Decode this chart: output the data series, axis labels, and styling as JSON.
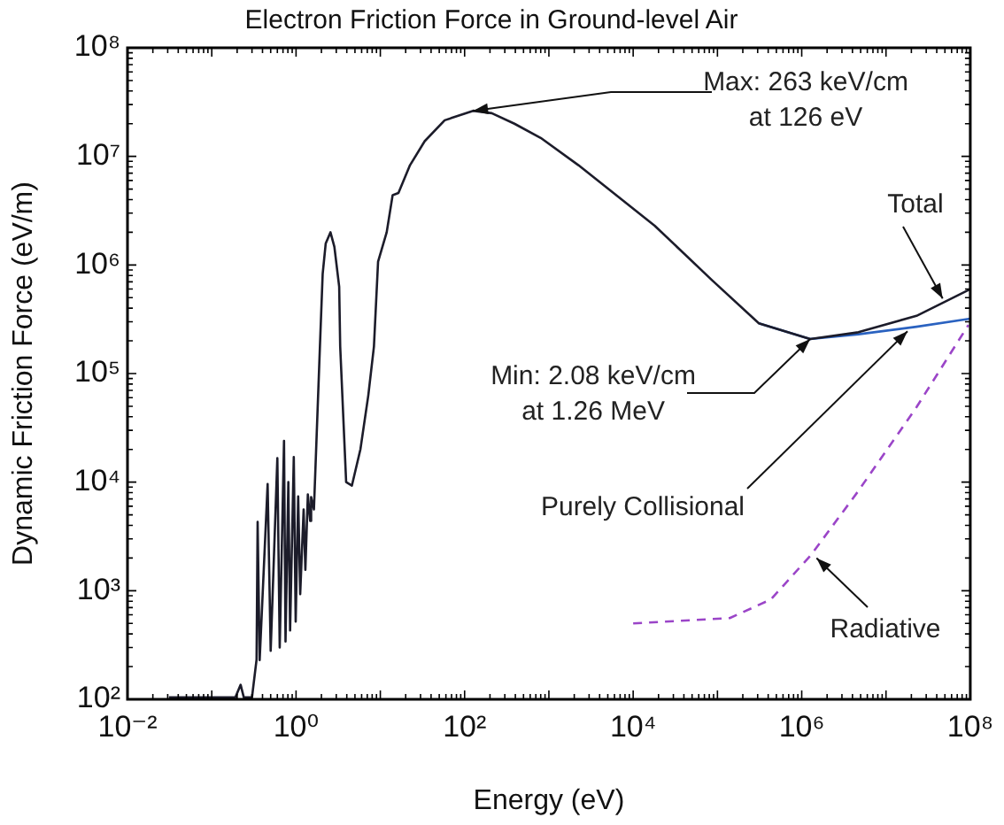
{
  "chart_data": {
    "type": "line",
    "title": "Electron Friction Force in Ground-level Air",
    "xlabel": "Energy (eV)",
    "ylabel": "Dynamic Friction Force (eV/m)",
    "log": "xy",
    "grid": false,
    "legend": false,
    "marker": "none",
    "xlim": [
      0.01,
      100000000
    ],
    "ylim": [
      100,
      100000000
    ],
    "xticks": [
      {
        "value": 0.01,
        "label": "10⁻²"
      },
      {
        "value": 1,
        "label": "10⁰"
      },
      {
        "value": 100,
        "label": "10²"
      },
      {
        "value": 10000,
        "label": "10⁴"
      },
      {
        "value": 1000000,
        "label": "10⁶"
      },
      {
        "value": 100000000,
        "label": "10⁸"
      }
    ],
    "yticks": [
      {
        "value": 100,
        "label": "10²"
      },
      {
        "value": 1000,
        "label": "10³"
      },
      {
        "value": 10000,
        "label": "10⁴"
      },
      {
        "value": 100000,
        "label": "10⁵"
      },
      {
        "value": 1000000,
        "label": "10⁶"
      },
      {
        "value": 10000000,
        "label": "10⁷"
      },
      {
        "value": 100000000,
        "label": "10⁸"
      }
    ],
    "series": [
      {
        "color": "#1c1c2a",
        "x": [
          0.031,
          0.19,
          0.22,
          0.24,
          0.3,
          0.34,
          0.35,
          0.37,
          0.46,
          0.5,
          0.6,
          0.64,
          0.72,
          0.75,
          0.81,
          0.85,
          0.94,
          0.99,
          1.06,
          1.12,
          1.23,
          1.29,
          1.38,
          1.47,
          1.51,
          1.63,
          1.92,
          2.07,
          2.25,
          2.56,
          2.85,
          3.25,
          3.34,
          3.93,
          4.6,
          5.8,
          7.2,
          8.4,
          9.4,
          11.9,
          14.0,
          16.4,
          22.5,
          33.6,
          58,
          126,
          210,
          390,
          800,
          2240,
          18000,
          87000,
          310000,
          1260000,
          4700000,
          23000000,
          100000000
        ],
        "values": [
          104,
          104,
          136,
          104,
          104,
          232,
          4300,
          230,
          9600,
          280,
          16600,
          300,
          24000,
          340,
          10000,
          430,
          17000,
          520,
          7400,
          930,
          5600,
          1560,
          7700,
          4400,
          7300,
          5600,
          178000,
          830000,
          1580000,
          2000000,
          1470000,
          630000,
          178000,
          10000,
          9300,
          20000,
          63000,
          178000,
          1070000,
          2000000,
          4400000,
          4600000,
          8300000,
          13800000,
          21500000,
          26300000,
          25000000,
          20000000,
          14800000,
          8300000,
          2300000,
          720000,
          290000,
          208000,
          240000,
          340000,
          600000
        ]
      },
      {
        "color": "#2a62c0",
        "x": [
          310000,
          1260000,
          4700000,
          23000000,
          100000000
        ],
        "values": [
          290000,
          208000,
          230000,
          270000,
          320000
        ]
      },
      {
        "color": "#9b45c8",
        "line_style": "dashed",
        "x": [
          10000,
          140000,
          430000,
          1300000,
          4700000,
          23000000,
          95000000
        ],
        "values": [
          500,
          560,
          830,
          2150,
          8300,
          49000,
          280000
        ]
      }
    ],
    "annotations": [
      {
        "text": "Max: 263 keV/cm\nat 126 eV",
        "x": 126,
        "y": 26300000
      },
      {
        "text": "Min: 2.08 keV/cm\nat 1.26 MeV",
        "x": 1260000,
        "y": 208000
      },
      {
        "text": "Total",
        "x": 47000000,
        "y": 490000
      },
      {
        "text": "Purely Collisional",
        "x": 18000000,
        "y": 245000
      },
      {
        "text": "Radiative",
        "x": 1500000,
        "y": 2000
      }
    ]
  }
}
